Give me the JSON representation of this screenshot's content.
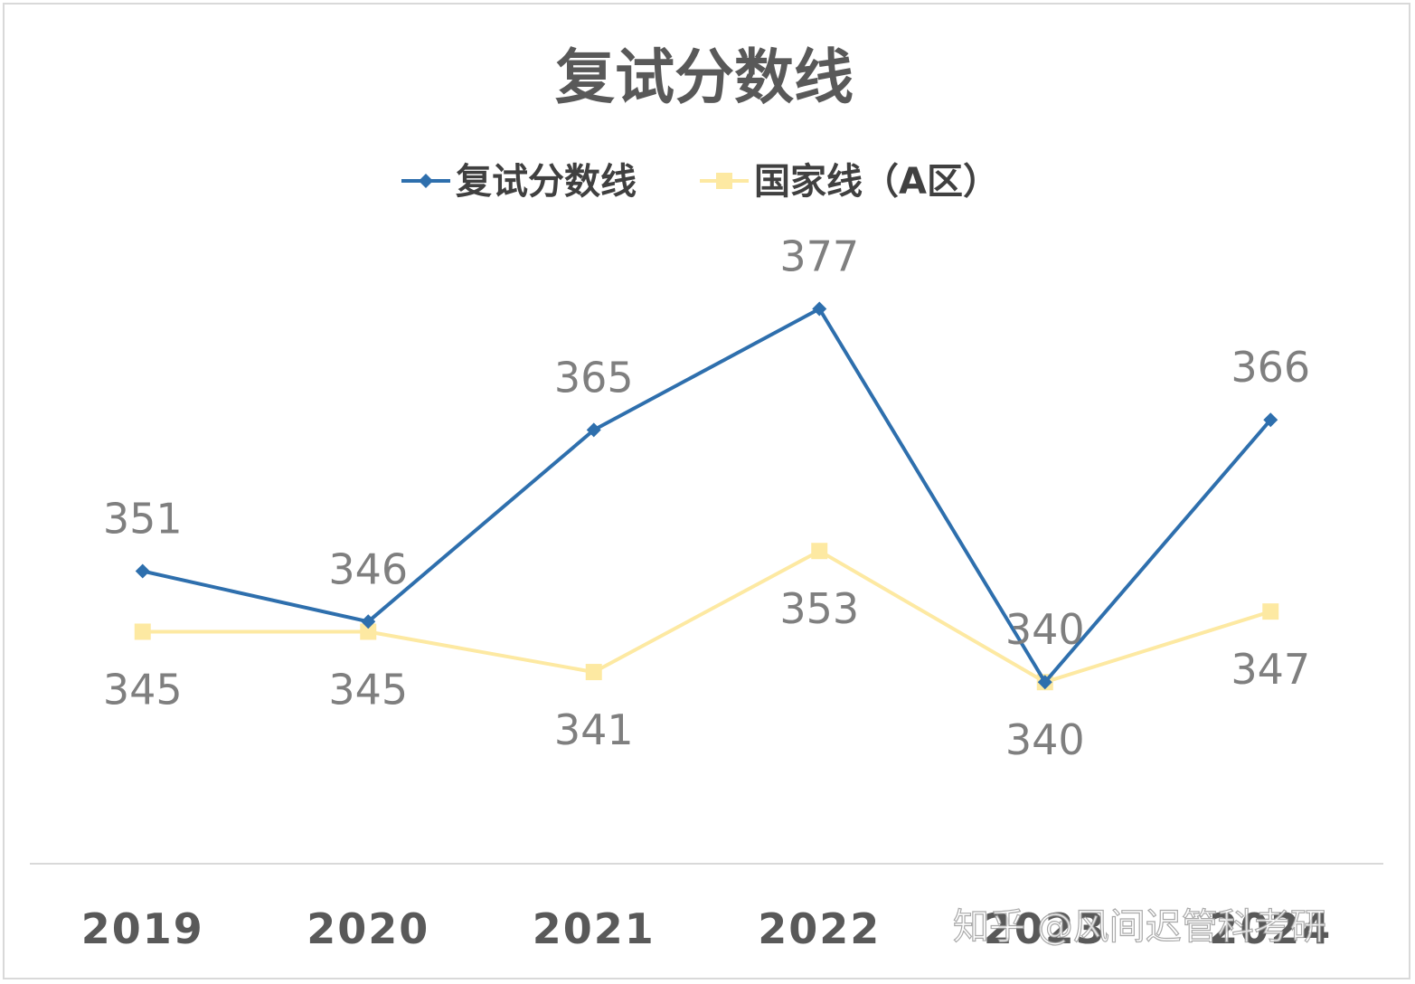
{
  "chart_data": {
    "type": "line",
    "title": "复试分数线",
    "categories": [
      "2019",
      "2020",
      "2021",
      "2022",
      "2023",
      "2024"
    ],
    "series": [
      {
        "name": "复试分数线",
        "values": [
          351,
          346,
          365,
          377,
          340,
          366
        ],
        "color": "#2e6fad",
        "marker": "diamond",
        "label_position": "above"
      },
      {
        "name": "国家线（A区）",
        "values": [
          345,
          345,
          341,
          353,
          340,
          347
        ],
        "color": "#fde9a2",
        "marker": "square",
        "label_position": "below"
      }
    ],
    "ylim": [
      322,
      387
    ],
    "grid": false,
    "legend": "top-center",
    "axis_color": "#d9d9d9"
  },
  "watermark": "知乎 @风间迟管科考研"
}
